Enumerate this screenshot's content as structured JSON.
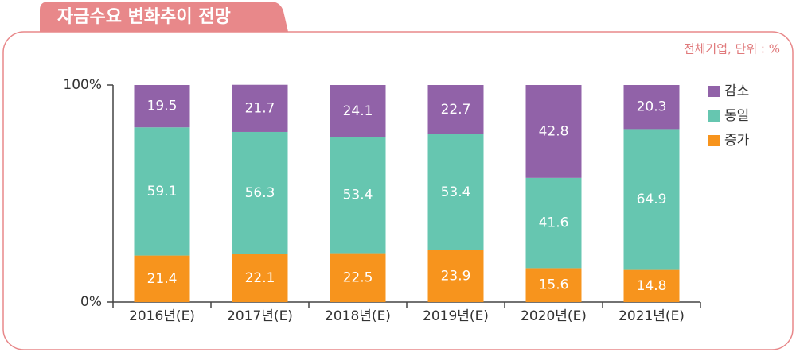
{
  "chart_data": {
    "type": "stacked_bar",
    "title": "자금수요 변화추이 전망",
    "subtitle": "전체기업, 단위 : %",
    "categories": [
      "2016년(E)",
      "2017년(E)",
      "2018년(E)",
      "2019년(E)",
      "2020년(E)",
      "2021년(E)"
    ],
    "series": [
      {
        "name": "증가",
        "color": "#f7941d",
        "values": [
          21.4,
          22.1,
          22.5,
          23.9,
          15.6,
          14.8
        ]
      },
      {
        "name": "동일",
        "color": "#66c6b0",
        "values": [
          59.1,
          56.3,
          53.4,
          53.4,
          41.6,
          64.9
        ]
      },
      {
        "name": "감소",
        "color": "#9162a8",
        "values": [
          19.5,
          21.7,
          24.1,
          22.7,
          42.8,
          20.3
        ]
      }
    ],
    "ylim": [
      0,
      100
    ],
    "yticks": [
      {
        "value": 0,
        "label": "0%"
      },
      {
        "value": 100,
        "label": "100%"
      }
    ],
    "legend": "right"
  }
}
